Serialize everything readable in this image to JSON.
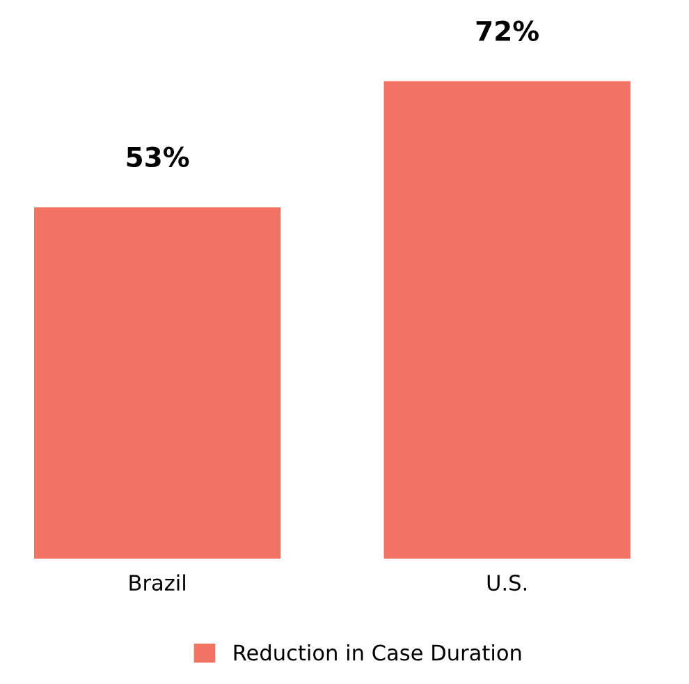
{
  "chart_data": {
    "type": "bar",
    "categories": [
      "Brazil",
      "U.S."
    ],
    "series": [
      {
        "name": "Reduction in Case Duration",
        "color": "#f07363",
        "values": [
          53,
          72
        ],
        "value_labels": [
          "53%",
          "72%"
        ]
      }
    ],
    "legend": "bottom",
    "grid": false
  }
}
